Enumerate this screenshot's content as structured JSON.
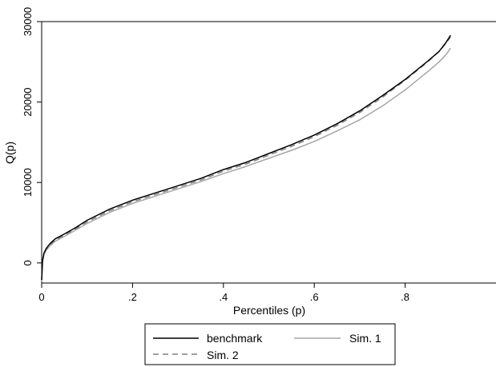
{
  "chart_data": {
    "type": "line",
    "title": "",
    "xlabel": "Percentiles (p)",
    "ylabel": "Q(p)",
    "xlim": [
      0,
      1
    ],
    "ylim": [
      -2500,
      30000
    ],
    "xticks": [
      0,
      0.2,
      0.4,
      0.6,
      0.8
    ],
    "xtick_labels": [
      "0",
      ".2",
      ".4",
      ".6",
      ".8"
    ],
    "yticks": [
      0,
      10000,
      20000,
      30000
    ],
    "ytick_labels": [
      "0",
      "10000",
      "20000",
      "30000"
    ],
    "grid": false,
    "legend_position": "bottom",
    "series": [
      {
        "name": "benchmark",
        "color": "#000000",
        "dash": "solid",
        "x": [
          0,
          0.002,
          0.005,
          0.01,
          0.02,
          0.03,
          0.05,
          0.075,
          0.1,
          0.15,
          0.2,
          0.25,
          0.3,
          0.35,
          0.4,
          0.45,
          0.5,
          0.55,
          0.6,
          0.65,
          0.7,
          0.75,
          0.8,
          0.85,
          0.875,
          0.89,
          0.9
        ],
        "y": [
          -2100,
          300,
          1200,
          1800,
          2500,
          3000,
          3600,
          4400,
          5300,
          6700,
          7800,
          8700,
          9600,
          10500,
          11600,
          12500,
          13600,
          14700,
          15900,
          17300,
          18900,
          20800,
          22800,
          25100,
          26300,
          27400,
          28300
        ]
      },
      {
        "name": "Sim. 1",
        "color": "#a6a6a6",
        "dash": "solid",
        "x": [
          0,
          0.002,
          0.005,
          0.01,
          0.02,
          0.03,
          0.05,
          0.075,
          0.1,
          0.15,
          0.2,
          0.25,
          0.3,
          0.35,
          0.4,
          0.45,
          0.5,
          0.55,
          0.6,
          0.65,
          0.7,
          0.75,
          0.8,
          0.85,
          0.875,
          0.89,
          0.9
        ],
        "y": [
          -2300,
          200,
          1000,
          1600,
          2200,
          2700,
          3300,
          4100,
          4900,
          6300,
          7400,
          8300,
          9200,
          10100,
          11100,
          12000,
          13000,
          14000,
          15100,
          16400,
          17800,
          19500,
          21500,
          23800,
          25000,
          25900,
          26700
        ]
      },
      {
        "name": "Sim. 2",
        "color": "#808080",
        "dash": "dashed",
        "x": [
          0,
          0.002,
          0.005,
          0.01,
          0.02,
          0.03,
          0.05,
          0.075,
          0.1,
          0.15,
          0.2,
          0.25,
          0.3,
          0.35,
          0.4,
          0.45,
          0.5,
          0.55,
          0.6,
          0.65,
          0.7,
          0.75,
          0.8,
          0.85,
          0.875,
          0.89,
          0.9
        ],
        "y": [
          -2200,
          250,
          1100,
          1700,
          2350,
          2850,
          3450,
          4250,
          5100,
          6500,
          7600,
          8500,
          9400,
          10300,
          11400,
          12300,
          13400,
          14500,
          15700,
          17100,
          18700,
          20600,
          22700,
          25000,
          26300,
          27300,
          28100
        ]
      }
    ]
  }
}
